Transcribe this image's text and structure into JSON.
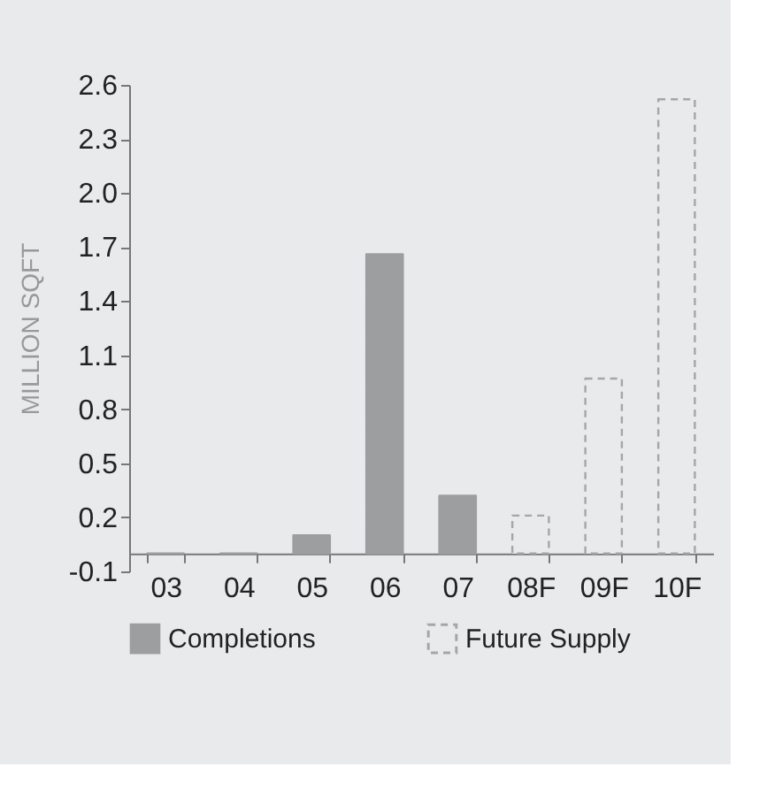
{
  "chart_data": {
    "type": "bar",
    "ylabel": "MILLION SQFT",
    "categories": [
      "03",
      "04",
      "05",
      "06",
      "07",
      "08F",
      "09F",
      "10F"
    ],
    "series": [
      {
        "name": "Completions",
        "color": "#9d9ea0",
        "line_style": "solid",
        "values": [
          0,
          0,
          0.1,
          1.66,
          0.32,
          null,
          null,
          null
        ]
      },
      {
        "name": "Future Supply",
        "color": "#a6a6a6",
        "line_style": "dashed",
        "values": [
          null,
          null,
          null,
          null,
          null,
          0.21,
          0.97,
          2.52
        ]
      }
    ],
    "ylim": [
      -0.1,
      2.6
    ],
    "yticks": [
      -0.1,
      0.2,
      0.5,
      0.8,
      1.1,
      1.4,
      1.7,
      {
        "value": 2,
        "label": "2.0"
      },
      2.3,
      2.6
    ],
    "grid": false,
    "legend": "bottom"
  }
}
